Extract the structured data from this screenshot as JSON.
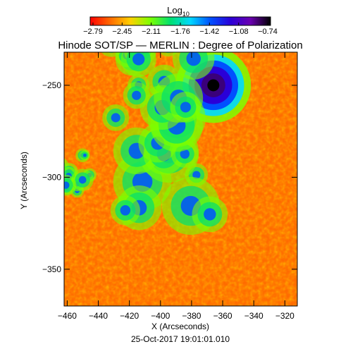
{
  "figure": {
    "title": "Hinode SOT/SP — MERLIN : Degree of Polarization",
    "timestamp": "25-Oct-2017 19:01:01.010"
  },
  "colorbar": {
    "label_main": "Log",
    "label_sub": "10",
    "colormap": "rainbow (red → orange → yellow → green → cyan → blue → purple → black)",
    "colors": [
      "#ff0000",
      "#ff6a00",
      "#ffd000",
      "#7cff00",
      "#00e070",
      "#00d8ff",
      "#0050ff",
      "#2a00d8",
      "#6a00b0",
      "#000000"
    ],
    "tick_labels": [
      "−2.79",
      "−2.45",
      "−2.11",
      "−1.76",
      "−1.42",
      "−1.08",
      "−0.74"
    ]
  },
  "axes": {
    "xlabel": "X (Arcseconds)",
    "ylabel": "Y (Arcseconds)",
    "xlim": [
      -462,
      -312
    ],
    "ylim": [
      -370,
      -232
    ],
    "x_ticks": [
      {
        "value": -460,
        "label": "−460"
      },
      {
        "value": -440,
        "label": "−440"
      },
      {
        "value": -420,
        "label": "−420"
      },
      {
        "value": -400,
        "label": "−400"
      },
      {
        "value": -380,
        "label": "−380"
      },
      {
        "value": -360,
        "label": "−360"
      },
      {
        "value": -340,
        "label": "−340"
      },
      {
        "value": -320,
        "label": "−320"
      }
    ],
    "y_ticks": [
      {
        "value": -250,
        "label": "−250"
      },
      {
        "value": -300,
        "label": "−300"
      },
      {
        "value": -350,
        "label": "−350"
      }
    ]
  },
  "image_map": {
    "background_color": "#ff6a00",
    "features": [
      {
        "name": "sunspot",
        "x": -366,
        "y": -250,
        "size_arcsec": 11
      },
      {
        "name": "plage-center",
        "x": -400,
        "y": -295,
        "size_arcsec": 30
      },
      {
        "name": "plage-north",
        "x": -405,
        "y": -245,
        "size_arcsec": 25
      },
      {
        "name": "plage-west",
        "x": -458,
        "y": -298,
        "size_arcsec": 12
      }
    ]
  }
}
